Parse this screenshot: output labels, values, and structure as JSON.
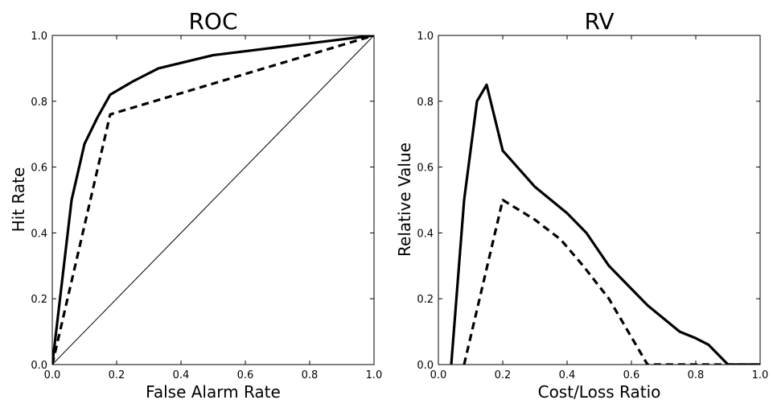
{
  "chart_data": [
    {
      "type": "line",
      "title": "ROC",
      "xlabel": "False Alarm Rate",
      "ylabel": "Hit Rate",
      "xlim": [
        0.0,
        1.0
      ],
      "ylim": [
        0.0,
        1.0
      ],
      "xticks": [
        "0.0",
        "0.2",
        "0.4",
        "0.6",
        "0.8",
        "1.0"
      ],
      "yticks": [
        "0.0",
        "0.2",
        "0.4",
        "0.6",
        "0.8",
        "1.0"
      ],
      "grid": false,
      "series": [
        {
          "style": "solid",
          "x": [
            0.0,
            0.06,
            0.1,
            0.14,
            0.18,
            0.25,
            0.33,
            0.5,
            0.75,
            1.0
          ],
          "y": [
            0.0,
            0.5,
            0.67,
            0.75,
            0.82,
            0.86,
            0.9,
            0.94,
            0.97,
            1.0
          ]
        },
        {
          "style": "dashed",
          "x": [
            0.0,
            0.18,
            1.0
          ],
          "y": [
            0.0,
            0.76,
            1.0
          ]
        },
        {
          "style": "diagonal",
          "x": [
            0.0,
            1.0
          ],
          "y": [
            0.0,
            1.0
          ]
        }
      ]
    },
    {
      "type": "line",
      "title": "RV",
      "xlabel": "Cost/Loss Ratio",
      "ylabel": "Relative Value",
      "xlim": [
        0.0,
        1.0
      ],
      "ylim": [
        0.0,
        1.0
      ],
      "xticks": [
        "0.0",
        "0.2",
        "0.4",
        "0.6",
        "0.8",
        "1.0"
      ],
      "yticks": [
        "0.0",
        "0.2",
        "0.4",
        "0.6",
        "0.8",
        "1.0"
      ],
      "grid": false,
      "series": [
        {
          "style": "solid",
          "x": [
            0.04,
            0.08,
            0.12,
            0.15,
            0.2,
            0.3,
            0.4,
            0.46,
            0.53,
            0.65,
            0.75,
            0.8,
            0.84,
            0.9,
            1.0
          ],
          "y": [
            0.0,
            0.5,
            0.8,
            0.85,
            0.65,
            0.54,
            0.46,
            0.4,
            0.3,
            0.18,
            0.1,
            0.08,
            0.06,
            0.0,
            0.0
          ]
        },
        {
          "style": "dashed",
          "x": [
            0.08,
            0.2,
            0.3,
            0.38,
            0.45,
            0.53,
            0.65,
            1.0
          ],
          "y": [
            0.0,
            0.5,
            0.44,
            0.38,
            0.3,
            0.2,
            0.0,
            0.0
          ]
        }
      ]
    }
  ]
}
